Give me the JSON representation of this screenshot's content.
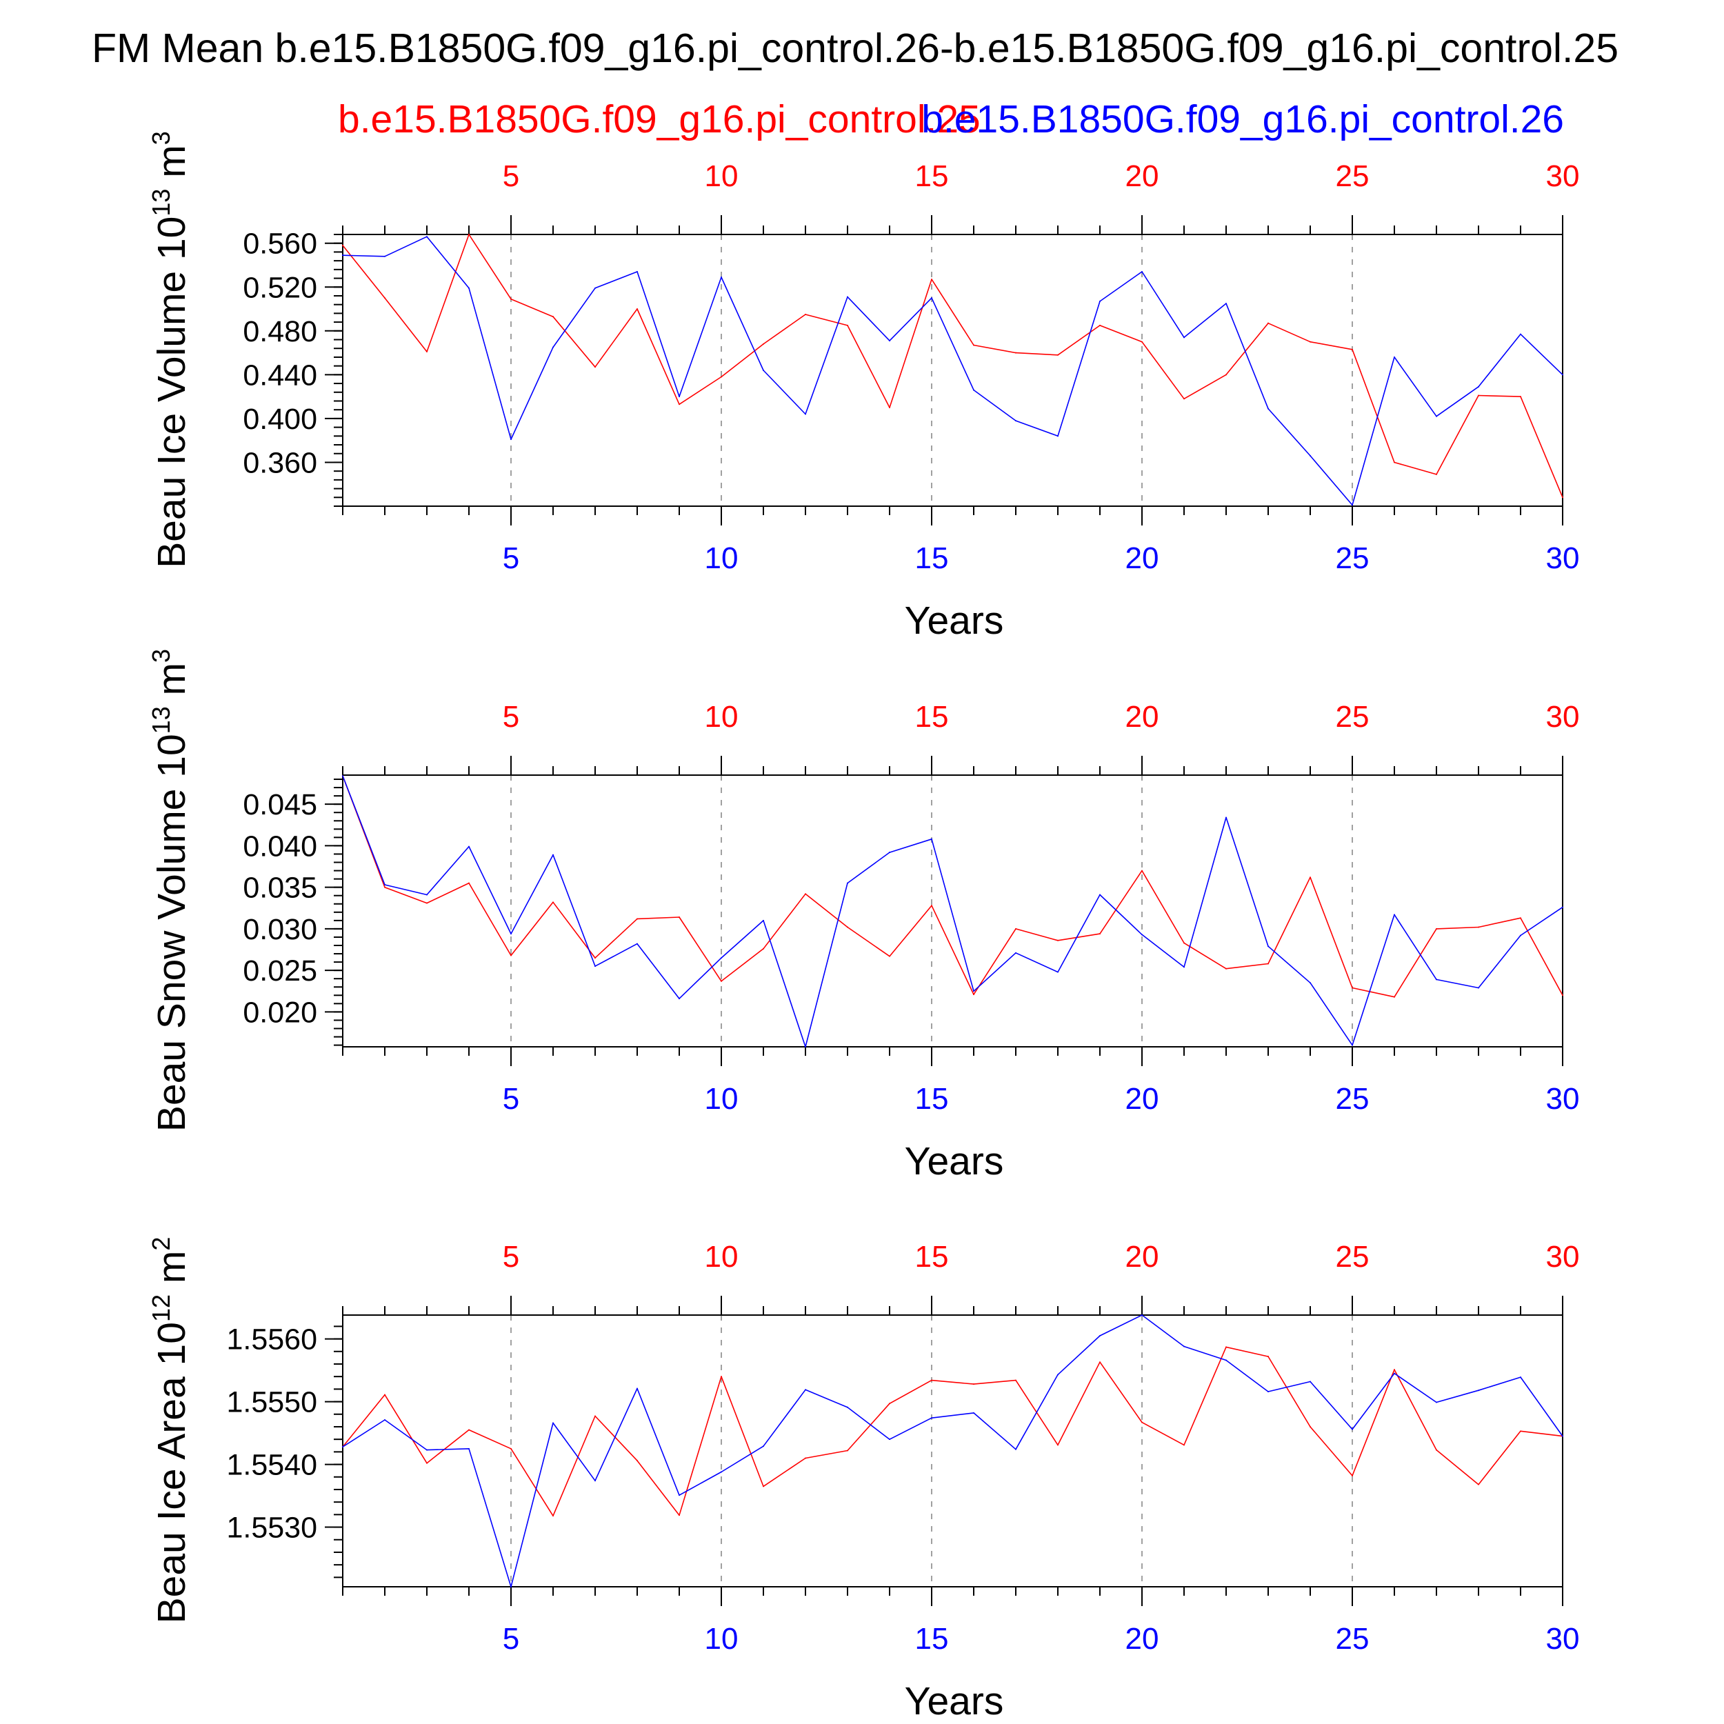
{
  "title": "FM Mean b.e15.B1850G.f09_g16.pi_control.26-b.e15.B1850G.f09_g16.pi_control.25",
  "legend": {
    "case1": "b.e15.B1850G.f09_g16.pi_control.25",
    "case2": "b.e15.B1850G.f09_g16.pi_control.26"
  },
  "colors": {
    "case1": "#ff0000",
    "case2": "#0000ff",
    "axis": "#000000",
    "grid": "#a0a0a0"
  },
  "chart_data": [
    {
      "type": "line",
      "ylabel": "Beau Ice Volume",
      "yunit_base": "10",
      "yunit_exp": "13",
      "yunit_tail": "m",
      "yunit_tail_exp": "3",
      "xlabel": "Years",
      "xlim": [
        1,
        30
      ],
      "ylim": [
        0.32,
        0.568
      ],
      "yticks": [
        "0.560",
        "0.520",
        "0.480",
        "0.440",
        "0.400",
        "0.360"
      ],
      "xticks": [
        "5",
        "10",
        "15",
        "20",
        "25",
        "30"
      ],
      "x": [
        1,
        2,
        3,
        4,
        5,
        6,
        7,
        8,
        9,
        10,
        11,
        12,
        13,
        14,
        15,
        16,
        17,
        18,
        19,
        20,
        21,
        22,
        23,
        24,
        25,
        26,
        27,
        28,
        29,
        30
      ],
      "series": [
        {
          "name": "b.e15.B1850G.f09_g16.pi_control.25",
          "color": "#ff0000",
          "values": [
            0.558,
            0.51,
            0.461,
            0.568,
            0.509,
            0.493,
            0.447,
            0.5,
            0.413,
            0.438,
            0.468,
            0.495,
            0.485,
            0.41,
            0.527,
            0.467,
            0.46,
            0.458,
            0.485,
            0.47,
            0.418,
            0.44,
            0.487,
            0.47,
            0.463,
            0.36,
            0.349,
            0.421,
            0.42,
            0.328
          ]
        },
        {
          "name": "b.e15.B1850G.f09_g16.pi_control.26",
          "color": "#0000ff",
          "values": [
            0.549,
            0.548,
            0.566,
            0.519,
            0.381,
            0.465,
            0.519,
            0.534,
            0.42,
            0.529,
            0.444,
            0.404,
            0.511,
            0.471,
            0.51,
            0.426,
            0.398,
            0.384,
            0.507,
            0.534,
            0.474,
            0.505,
            0.409,
            0.366,
            0.321,
            0.456,
            0.402,
            0.429,
            0.477,
            0.44
          ]
        }
      ]
    },
    {
      "type": "line",
      "ylabel": "Beau Snow Volume",
      "yunit_base": "10",
      "yunit_exp": "13",
      "yunit_tail": "m",
      "yunit_tail_exp": "3",
      "xlabel": "Years",
      "xlim": [
        1,
        30
      ],
      "ylim": [
        0.0158,
        0.0485
      ],
      "yticks": [
        "0.045",
        "0.040",
        "0.035",
        "0.030",
        "0.025",
        "0.020"
      ],
      "xticks": [
        "5",
        "10",
        "15",
        "20",
        "25",
        "30"
      ],
      "x": [
        1,
        2,
        3,
        4,
        5,
        6,
        7,
        8,
        9,
        10,
        11,
        12,
        13,
        14,
        15,
        16,
        17,
        18,
        19,
        20,
        21,
        22,
        23,
        24,
        25,
        26,
        27,
        28,
        29,
        30
      ],
      "series": [
        {
          "name": "b.e15.B1850G.f09_g16.pi_control.25",
          "color": "#ff0000",
          "values": [
            0.0484,
            0.035,
            0.0331,
            0.0355,
            0.0268,
            0.0332,
            0.0265,
            0.0312,
            0.0314,
            0.0237,
            0.0276,
            0.0342,
            0.0302,
            0.0267,
            0.0328,
            0.0221,
            0.03,
            0.0286,
            0.0294,
            0.037,
            0.0283,
            0.0252,
            0.0258,
            0.0362,
            0.0229,
            0.0218,
            0.03,
            0.0302,
            0.0313,
            0.022
          ]
        },
        {
          "name": "b.e15.B1850G.f09_g16.pi_control.26",
          "color": "#0000ff",
          "values": [
            0.0484,
            0.0353,
            0.0341,
            0.0399,
            0.0294,
            0.0389,
            0.0255,
            0.0282,
            0.0216,
            0.0265,
            0.031,
            0.0158,
            0.0355,
            0.0392,
            0.0408,
            0.0225,
            0.0271,
            0.0248,
            0.0341,
            0.0293,
            0.0254,
            0.0434,
            0.0279,
            0.0235,
            0.016,
            0.0317,
            0.0239,
            0.0229,
            0.0292,
            0.0326
          ]
        }
      ]
    },
    {
      "type": "line",
      "ylabel": "Beau Ice Area",
      "yunit_base": "10",
      "yunit_exp": "12",
      "yunit_tail": "m",
      "yunit_tail_exp": "2",
      "xlabel": "Years",
      "xlim": [
        1,
        30
      ],
      "ylim": [
        1.55205,
        1.55638
      ],
      "yticks": [
        "1.5560",
        "1.5550",
        "1.5540",
        "1.5530"
      ],
      "xticks": [
        "5",
        "10",
        "15",
        "20",
        "25",
        "30"
      ],
      "x": [
        1,
        2,
        3,
        4,
        5,
        6,
        7,
        8,
        9,
        10,
        11,
        12,
        13,
        14,
        15,
        16,
        17,
        18,
        19,
        20,
        21,
        22,
        23,
        24,
        25,
        26,
        27,
        28,
        29,
        30
      ],
      "series": [
        {
          "name": "b.e15.B1850G.f09_g16.pi_control.25",
          "color": "#ff0000",
          "values": [
            1.55428,
            1.55511,
            1.55402,
            1.55455,
            1.55425,
            1.55318,
            1.55477,
            1.55406,
            1.55319,
            1.5554,
            1.55365,
            1.5541,
            1.55422,
            1.55497,
            1.55534,
            1.55528,
            1.55534,
            1.55431,
            1.55563,
            1.55467,
            1.55431,
            1.55587,
            1.55572,
            1.5546,
            1.55382,
            1.55551,
            1.55423,
            1.55368,
            1.55453,
            1.55445
          ]
        },
        {
          "name": "b.e15.B1850G.f09_g16.pi_control.26",
          "color": "#0000ff",
          "values": [
            1.55428,
            1.55471,
            1.55423,
            1.55425,
            1.55205,
            1.55466,
            1.55374,
            1.55521,
            1.55351,
            1.55388,
            1.55429,
            1.55519,
            1.55491,
            1.5544,
            1.55474,
            1.55482,
            1.55424,
            1.55543,
            1.55605,
            1.55638,
            1.55588,
            1.55566,
            1.55516,
            1.55532,
            1.55456,
            1.55545,
            1.55499,
            1.55518,
            1.55539,
            1.55445
          ]
        }
      ]
    }
  ]
}
